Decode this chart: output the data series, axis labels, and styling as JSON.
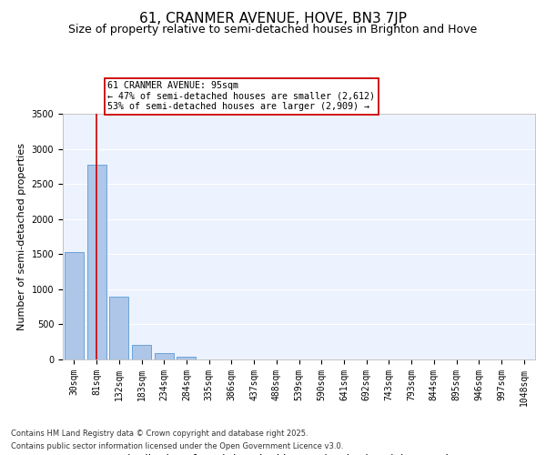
{
  "title_line1": "61, CRANMER AVENUE, HOVE, BN3 7JP",
  "title_line2": "Size of property relative to semi-detached houses in Brighton and Hove",
  "xlabel": "Distribution of semi-detached houses by size in Brighton and Hove",
  "ylabel": "Number of semi-detached properties",
  "categories": [
    "30sqm",
    "81sqm",
    "132sqm",
    "183sqm",
    "234sqm",
    "284sqm",
    "335sqm",
    "386sqm",
    "437sqm",
    "488sqm",
    "539sqm",
    "590sqm",
    "641sqm",
    "692sqm",
    "743sqm",
    "793sqm",
    "844sqm",
    "895sqm",
    "946sqm",
    "997sqm",
    "1048sqm"
  ],
  "values": [
    1530,
    2780,
    900,
    210,
    95,
    40,
    0,
    0,
    0,
    0,
    0,
    0,
    0,
    0,
    0,
    0,
    0,
    0,
    0,
    0,
    0
  ],
  "bar_color": "#aec6e8",
  "bar_edge_color": "#5b9bd5",
  "vline_x": 1,
  "vline_color": "#cc0000",
  "annotation_title": "61 CRANMER AVENUE: 95sqm",
  "annotation_line2": "← 47% of semi-detached houses are smaller (2,612)",
  "annotation_line3": "53% of semi-detached houses are larger (2,909) →",
  "annotation_box_color": "#cc0000",
  "ylim": [
    0,
    3500
  ],
  "yticks": [
    0,
    500,
    1000,
    1500,
    2000,
    2500,
    3000,
    3500
  ],
  "background_color": "#edf2ff",
  "grid_color": "#ffffff",
  "footer_line1": "Contains HM Land Registry data © Crown copyright and database right 2025.",
  "footer_line2": "Contains public sector information licensed under the Open Government Licence v3.0.",
  "title_fontsize": 11,
  "subtitle_fontsize": 9,
  "tick_fontsize": 7,
  "ylabel_fontsize": 8,
  "xlabel_fontsize": 8.5
}
